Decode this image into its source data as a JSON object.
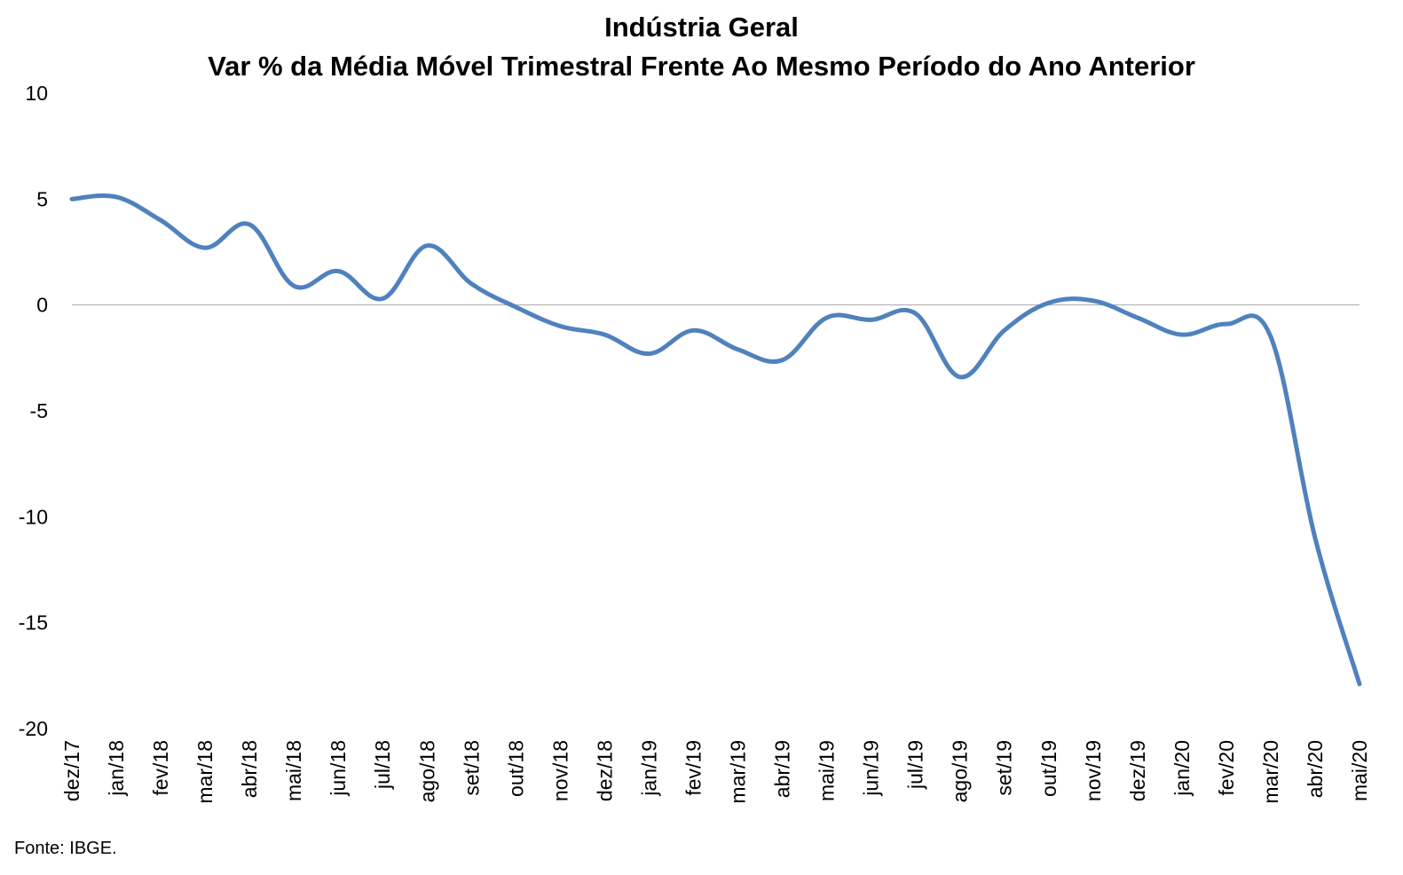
{
  "chart_data": {
    "type": "line",
    "title": "Indústria Geral",
    "subtitle": "Var % da Média Móvel Trimestral Frente Ao Mesmo Período do Ano Anterior",
    "x": [
      "dez/17",
      "jan/18",
      "fev/18",
      "mar/18",
      "abr/18",
      "mai/18",
      "jun/18",
      "jul/18",
      "ago/18",
      "set/18",
      "out/18",
      "nov/18",
      "dez/18",
      "jan/19",
      "fev/19",
      "mar/19",
      "abr/19",
      "mai/19",
      "jun/19",
      "jul/19",
      "ago/19",
      "set/19",
      "out/19",
      "nov/19",
      "dez/19",
      "jan/20",
      "fev/20",
      "mar/20",
      "abr/20",
      "mai/20"
    ],
    "series": [
      {
        "values": [
          5.0,
          5.1,
          4.0,
          2.7,
          3.8,
          0.9,
          1.6,
          0.3,
          2.8,
          1.0,
          -0.1,
          -1.0,
          -1.4,
          -2.3,
          -1.2,
          -2.1,
          -2.6,
          -0.6,
          -0.7,
          -0.4,
          -3.4,
          -1.2,
          0.1,
          0.2,
          -0.6,
          -1.4,
          -0.9,
          -1.5,
          -11.0,
          -17.9
        ],
        "color": "#4F81BD"
      }
    ],
    "yticks": [
      10,
      5,
      0,
      -5,
      -10,
      -15,
      -20
    ],
    "ylim": [
      -20,
      10
    ],
    "zero_line": true,
    "grid": false,
    "legend": "none"
  },
  "footer": {
    "source": "Fonte: IBGE."
  }
}
